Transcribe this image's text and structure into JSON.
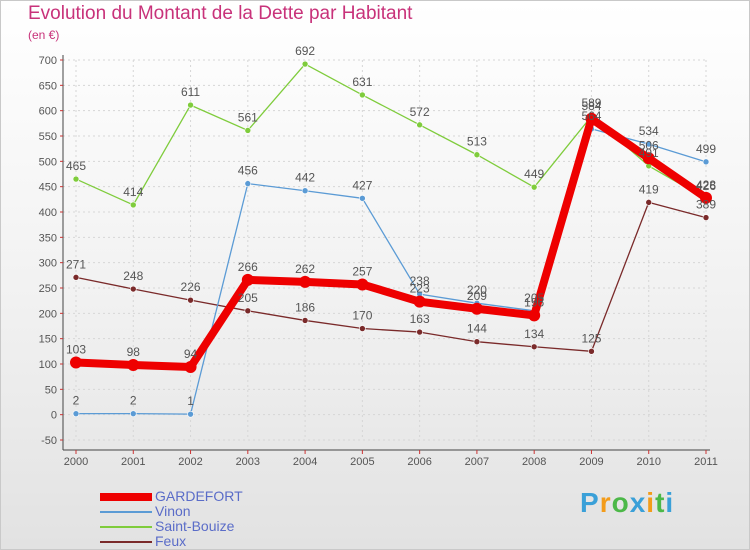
{
  "chart_data": {
    "type": "line",
    "title": "Evolution du Montant de la Dette par Habitant",
    "subtitle": "(en €)",
    "xlabel": "",
    "ylabel": "",
    "ylim": [
      -50,
      700
    ],
    "yticks": [
      "-50",
      "0",
      "50",
      "100",
      "150",
      "200",
      "250",
      "300",
      "350",
      "400",
      "450",
      "500",
      "550",
      "600",
      "650",
      "700"
    ],
    "categories": [
      "2000",
      "2001",
      "2002",
      "2003",
      "2004",
      "2005",
      "2006",
      "2007",
      "2008",
      "2009",
      "2010",
      "2011"
    ],
    "series": [
      {
        "name": "GARDEFORT",
        "color": "#ee0000",
        "values": [
          103,
          98,
          94,
          266,
          262,
          257,
          223,
          209,
          196,
          584,
          506,
          428
        ],
        "labels": [
          "103",
          "98",
          "94",
          "266",
          "262",
          "257",
          "223",
          "209",
          "196",
          "584",
          "506",
          "428"
        ]
      },
      {
        "name": "Vinon",
        "color": "#5b9bd5",
        "values": [
          2,
          2,
          1,
          456,
          442,
          427,
          238,
          220,
          205,
          564,
          534,
          499
        ],
        "labels": [
          "2",
          "2",
          "1",
          "456",
          "442",
          "427",
          "238",
          "220",
          "205",
          "564",
          "534",
          "499"
        ]
      },
      {
        "name": "Saint-Bouize",
        "color": "#7fcc3c",
        "values": [
          465,
          414,
          611,
          561,
          692,
          631,
          572,
          513,
          449,
          589,
          491,
          426
        ],
        "labels": [
          "465",
          "414",
          "611",
          "561",
          "692",
          "631",
          "572",
          "513",
          "449",
          "589",
          "491",
          "426"
        ]
      },
      {
        "name": "Feux",
        "color": "#7a2a2a",
        "values": [
          271,
          248,
          226,
          205,
          186,
          170,
          163,
          144,
          134,
          125,
          419,
          389
        ],
        "labels": [
          "271",
          "248",
          "226",
          "205",
          "186",
          "170",
          "163",
          "144",
          "134",
          "125",
          "419",
          "389"
        ]
      }
    ]
  },
  "brand": {
    "letters": [
      "P",
      "r",
      "o",
      "x",
      "i",
      "t",
      "i"
    ],
    "colors": [
      "#3aa0d8",
      "#f39c1a",
      "#4cb848",
      "#3aa0d8",
      "#f39c1a",
      "#4cb848",
      "#3aa0d8"
    ]
  }
}
